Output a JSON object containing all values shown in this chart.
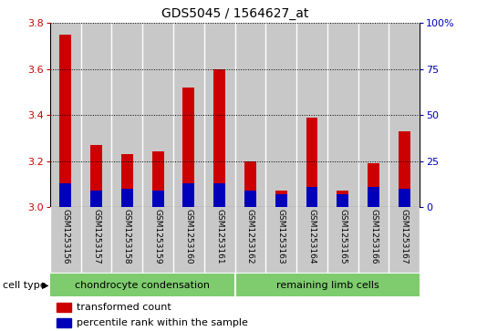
{
  "title": "GDS5045 / 1564627_at",
  "samples": [
    "GSM1253156",
    "GSM1253157",
    "GSM1253158",
    "GSM1253159",
    "GSM1253160",
    "GSM1253161",
    "GSM1253162",
    "GSM1253163",
    "GSM1253164",
    "GSM1253165",
    "GSM1253166",
    "GSM1253167"
  ],
  "red_values": [
    3.75,
    3.27,
    3.23,
    3.24,
    3.52,
    3.6,
    3.2,
    3.07,
    3.39,
    3.07,
    3.19,
    3.33
  ],
  "blue_pct": [
    13,
    9,
    10,
    9,
    13,
    13,
    9,
    7,
    11,
    7,
    11,
    10
  ],
  "y_min": 3.0,
  "y_max": 3.8,
  "y_ticks": [
    3.0,
    3.2,
    3.4,
    3.6,
    3.8
  ],
  "y2_ticks": [
    0,
    25,
    50,
    75,
    100
  ],
  "groups": [
    {
      "label": "chondrocyte condensation",
      "indices": [
        0,
        1,
        2,
        3,
        4,
        5
      ],
      "color": "#7ECC6E"
    },
    {
      "label": "remaining limb cells",
      "indices": [
        6,
        7,
        8,
        9,
        10,
        11
      ],
      "color": "#7ECC6E"
    }
  ],
  "cell_type_label": "cell type",
  "legend": [
    {
      "label": "transformed count",
      "color": "#CC0000"
    },
    {
      "label": "percentile rank within the sample",
      "color": "#0000BB"
    }
  ],
  "bar_bg_color": "#C8C8C8",
  "title_color": "#000000",
  "red_color": "#CC0000",
  "blue_color": "#0000BB",
  "baseline": 3.0,
  "bar_width": 0.38,
  "box_width": 1.0
}
